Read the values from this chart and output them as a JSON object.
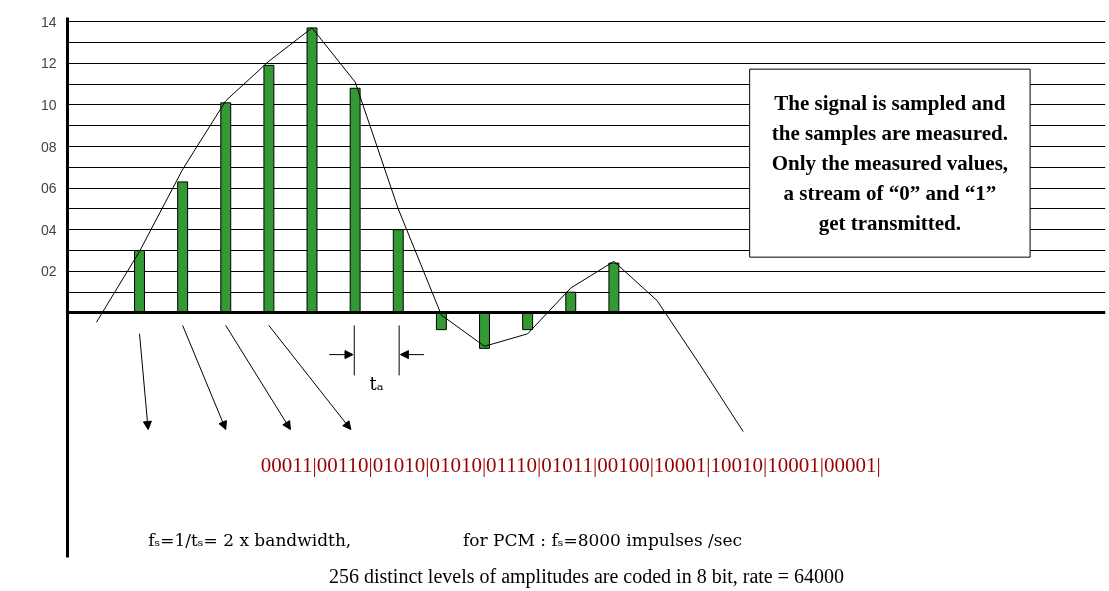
{
  "chart_data": {
    "type": "bar",
    "categories": [
      null,
      null,
      null,
      null,
      null,
      null,
      null,
      null,
      null,
      null,
      null,
      null,
      null,
      null,
      null,
      null
    ],
    "series": [
      {
        "color": "#339933",
        "values": [
          null,
          3.0,
          6.3,
          10.1,
          11.9,
          13.7,
          10.8,
          4.0,
          -0.8,
          -1.7,
          -0.8,
          1.0,
          2.4,
          null,
          null,
          null
        ]
      },
      {
        "type": "line",
        "color": "#000000",
        "values": [
          -0.45,
          2.96,
          6.9,
          10.2,
          12.1,
          13.7,
          11.1,
          5.0,
          -0.1,
          -1.6,
          -1.0,
          1.2,
          2.48,
          0.6,
          -2.5,
          -5.7
        ]
      }
    ],
    "ylim": [
      -11.75,
      14.2
    ],
    "yticks": [
      {
        "value": 1,
        "label": null
      },
      {
        "value": 2,
        "label": "02"
      },
      {
        "value": 3,
        "label": null
      },
      {
        "value": 4,
        "label": "04"
      },
      {
        "value": 5,
        "label": null
      },
      {
        "value": 6,
        "label": "06"
      },
      {
        "value": 7,
        "label": null
      },
      {
        "value": 8,
        "label": "08"
      },
      {
        "value": 9,
        "label": null
      },
      {
        "value": 10,
        "label": "10"
      },
      {
        "value": 11,
        "label": null
      },
      {
        "value": 12,
        "label": "12"
      },
      {
        "value": 13,
        "label": null
      },
      {
        "value": 14,
        "label": "14"
      }
    ],
    "grid": "y",
    "tick_labels": "y",
    "annotations": [
      "The signal is sampled and\nthe samples are measured.\nOnly the measured values,\na stream of “0” and “1”\nget transmitted.",
      "00011|00110|01010|01010|01110|01011|00100|10001|10010|10001|00001|",
      "fₛ=1/tₛ= 2 x bandwidth,",
      "for PCM : fₛ=8000 impulses /sec",
      "tₐ",
      "256 distinct levels of amplitudes are coded in 8 bit, rate = 64000"
    ]
  }
}
